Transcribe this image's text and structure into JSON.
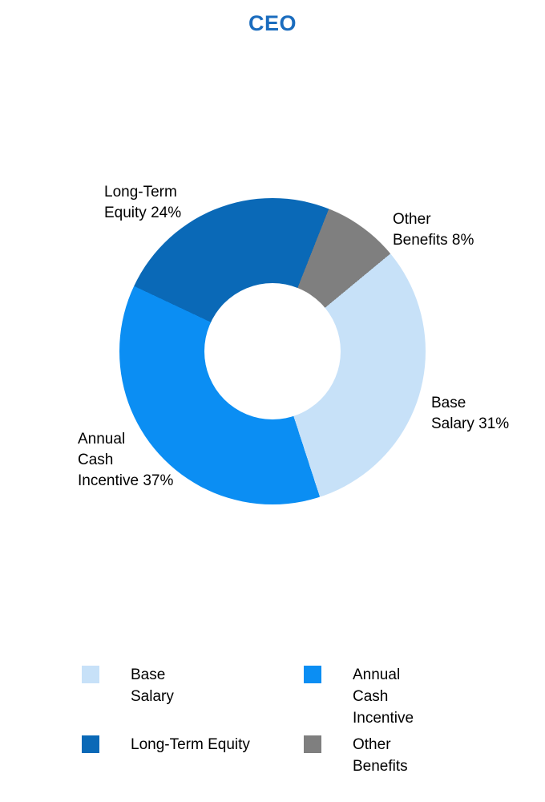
{
  "colors": {
    "title": "#1A6CBE",
    "label_text": "#000000",
    "background": "#FFFFFF"
  },
  "chart_data": {
    "type": "pie",
    "subtype": "donut",
    "title": "CEO",
    "start_angle_deg": 50.4,
    "inner_radius_ratio": 0.445,
    "slices": [
      {
        "name": "Base Salary",
        "value": 31,
        "color": "#C7E1F8",
        "callout_lines": [
          "Base",
          "Salary 31%"
        ]
      },
      {
        "name": "Annual Cash Incentive",
        "value": 37,
        "color": "#0B8EF3",
        "callout_lines": [
          "Annual",
          "Cash",
          "Incentive 37%"
        ]
      },
      {
        "name": "Long-Term Equity",
        "value": 24,
        "color": "#0A69B7",
        "callout_lines": [
          "Long-Term",
          "Equity 24%"
        ]
      },
      {
        "name": "Other Benefits",
        "value": 8,
        "color": "#7F7F7F",
        "callout_lines": [
          "Other",
          "Benefits 8%"
        ]
      }
    ],
    "legend": {
      "position": "bottom",
      "items": [
        {
          "slice": 0,
          "label_lines": [
            "Base",
            "Salary"
          ]
        },
        {
          "slice": 1,
          "label_lines": [
            "Annual",
            "Cash",
            "Incentive"
          ]
        },
        {
          "slice": 2,
          "label_lines": [
            "Long-Term Equity"
          ]
        },
        {
          "slice": 3,
          "label_lines": [
            "Other",
            "Benefits"
          ]
        }
      ]
    }
  }
}
